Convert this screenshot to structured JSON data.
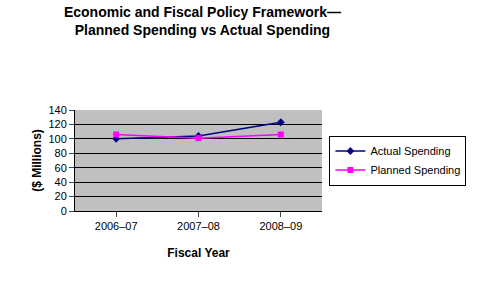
{
  "chart_data": {
    "type": "line",
    "title": "Economic and Fiscal Policy Framework—\nPlanned Spending vs Actual Spending",
    "x_label": "Fiscal Year",
    "y_label": "($ Millions)",
    "categories": [
      "2006–07",
      "2007–08",
      "2008–09"
    ],
    "series": [
      {
        "name": "Actual Spending",
        "color": "#000080",
        "marker": "diamond",
        "line_style": "solid",
        "values": [
          100,
          104,
          123
        ]
      },
      {
        "name": "Planned Spending",
        "color": "#ff00ff",
        "marker": "square",
        "line_style": "solid",
        "values": [
          106,
          101,
          106
        ]
      }
    ],
    "ylim": [
      0,
      140
    ],
    "yticks": [
      0,
      20,
      40,
      60,
      80,
      100,
      120,
      140
    ],
    "grid": true,
    "legend": "right"
  }
}
